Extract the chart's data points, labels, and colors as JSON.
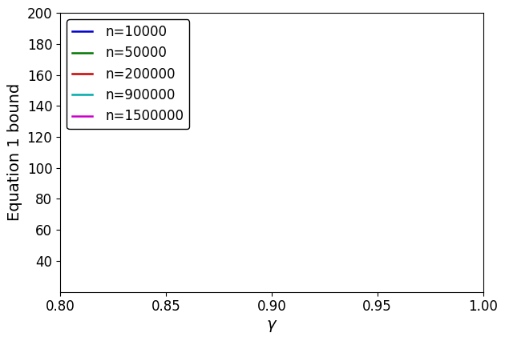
{
  "n_values": [
    10000,
    50000,
    200000,
    900000,
    1500000
  ],
  "colors": [
    "#0000cc",
    "#007700",
    "#cc0000",
    "#00aaaa",
    "#cc00cc"
  ],
  "labels": [
    "n=10000",
    "n=50000",
    "n=200000",
    "n=900000",
    "n=1500000"
  ],
  "gamma_min": 0.8,
  "gamma_max": 1.0,
  "ylim_min": 20,
  "ylim_max": 200,
  "xlabel": "$\\gamma$",
  "ylabel": "Equation 1 bound",
  "n_points": 5000,
  "xticks": [
    0.8,
    0.85,
    0.9,
    0.95,
    1.0
  ],
  "yticks": [
    40,
    60,
    80,
    100,
    120,
    140,
    160,
    180,
    200
  ],
  "legend_loc": "upper left",
  "linewidth": 1.8,
  "A": 4750.0,
  "B": 480.0,
  "font_size_tick": 12,
  "font_size_label": 14,
  "font_size_legend": 12
}
